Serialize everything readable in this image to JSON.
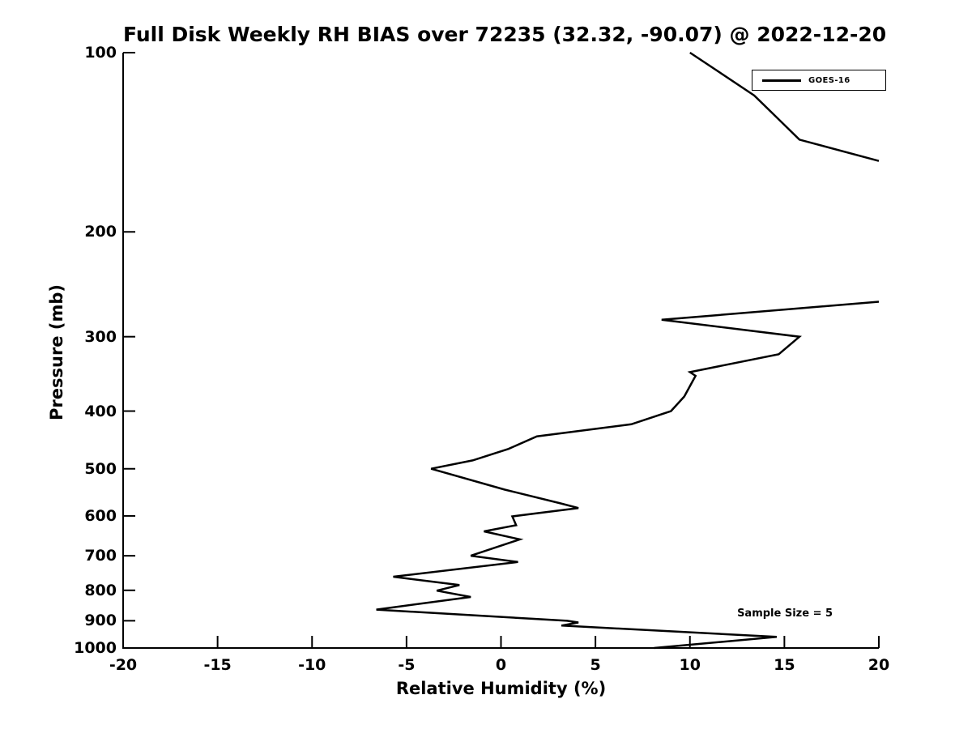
{
  "chart_data": {
    "type": "line",
    "title": "Full Disk Weekly RH BIAS over 72235 (32.32, -90.07) @ 2022-12-20",
    "xlabel": "Relative Humidity (%)",
    "ylabel": "Pressure (mb)",
    "x_ticks": [
      -20,
      -15,
      -10,
      -5,
      0,
      5,
      10,
      15,
      20
    ],
    "y_ticks": [
      100,
      200,
      300,
      400,
      500,
      600,
      700,
      800,
      900,
      1000
    ],
    "xlim": [
      -20,
      20
    ],
    "ylim": [
      100,
      1000
    ],
    "y_scale": "log",
    "y_inverted": true,
    "grid": false,
    "line_color": "#000000",
    "legend": {
      "position": "top-right",
      "entries": [
        {
          "label": "GOES-16",
          "color": "#000000"
        }
      ]
    },
    "annotations": [
      {
        "text": "Sample Size = 5",
        "x": 12.5,
        "y": 880
      }
    ],
    "series": [
      {
        "name": "GOES-16",
        "color": "#000000",
        "segments": [
          [
            [
              10.0,
              100
            ],
            [
              13.4,
              118
            ],
            [
              15.8,
              140
            ],
            [
              20.0,
              152
            ]
          ],
          [
            [
              20.0,
              262
            ],
            [
              8.5,
              281
            ],
            [
              15.8,
              300
            ],
            [
              14.7,
              321
            ],
            [
              10.0,
              344
            ],
            [
              10.3,
              349
            ],
            [
              9.7,
              378
            ],
            [
              9.0,
              400
            ],
            [
              6.9,
              421
            ],
            [
              1.9,
              441
            ],
            [
              0.4,
              463
            ],
            [
              -1.5,
              484
            ],
            [
              -3.7,
              500
            ],
            [
              0.2,
              542
            ],
            [
              3.1,
              571
            ],
            [
              4.1,
              582
            ],
            [
              0.6,
              601
            ],
            [
              0.8,
              622
            ],
            [
              -0.9,
              637
            ],
            [
              1.0,
              657
            ],
            [
              -1.6,
              700
            ],
            [
              0.9,
              717
            ],
            [
              -5.7,
              759
            ],
            [
              -2.2,
              784
            ],
            [
              -3.4,
              801
            ],
            [
              -1.6,
              821
            ],
            [
              -6.6,
              862
            ],
            [
              3.5,
              900
            ],
            [
              4.1,
              906
            ],
            [
              3.2,
              917
            ],
            [
              14.6,
              958
            ],
            [
              8.1,
              1000
            ]
          ]
        ]
      }
    ]
  }
}
